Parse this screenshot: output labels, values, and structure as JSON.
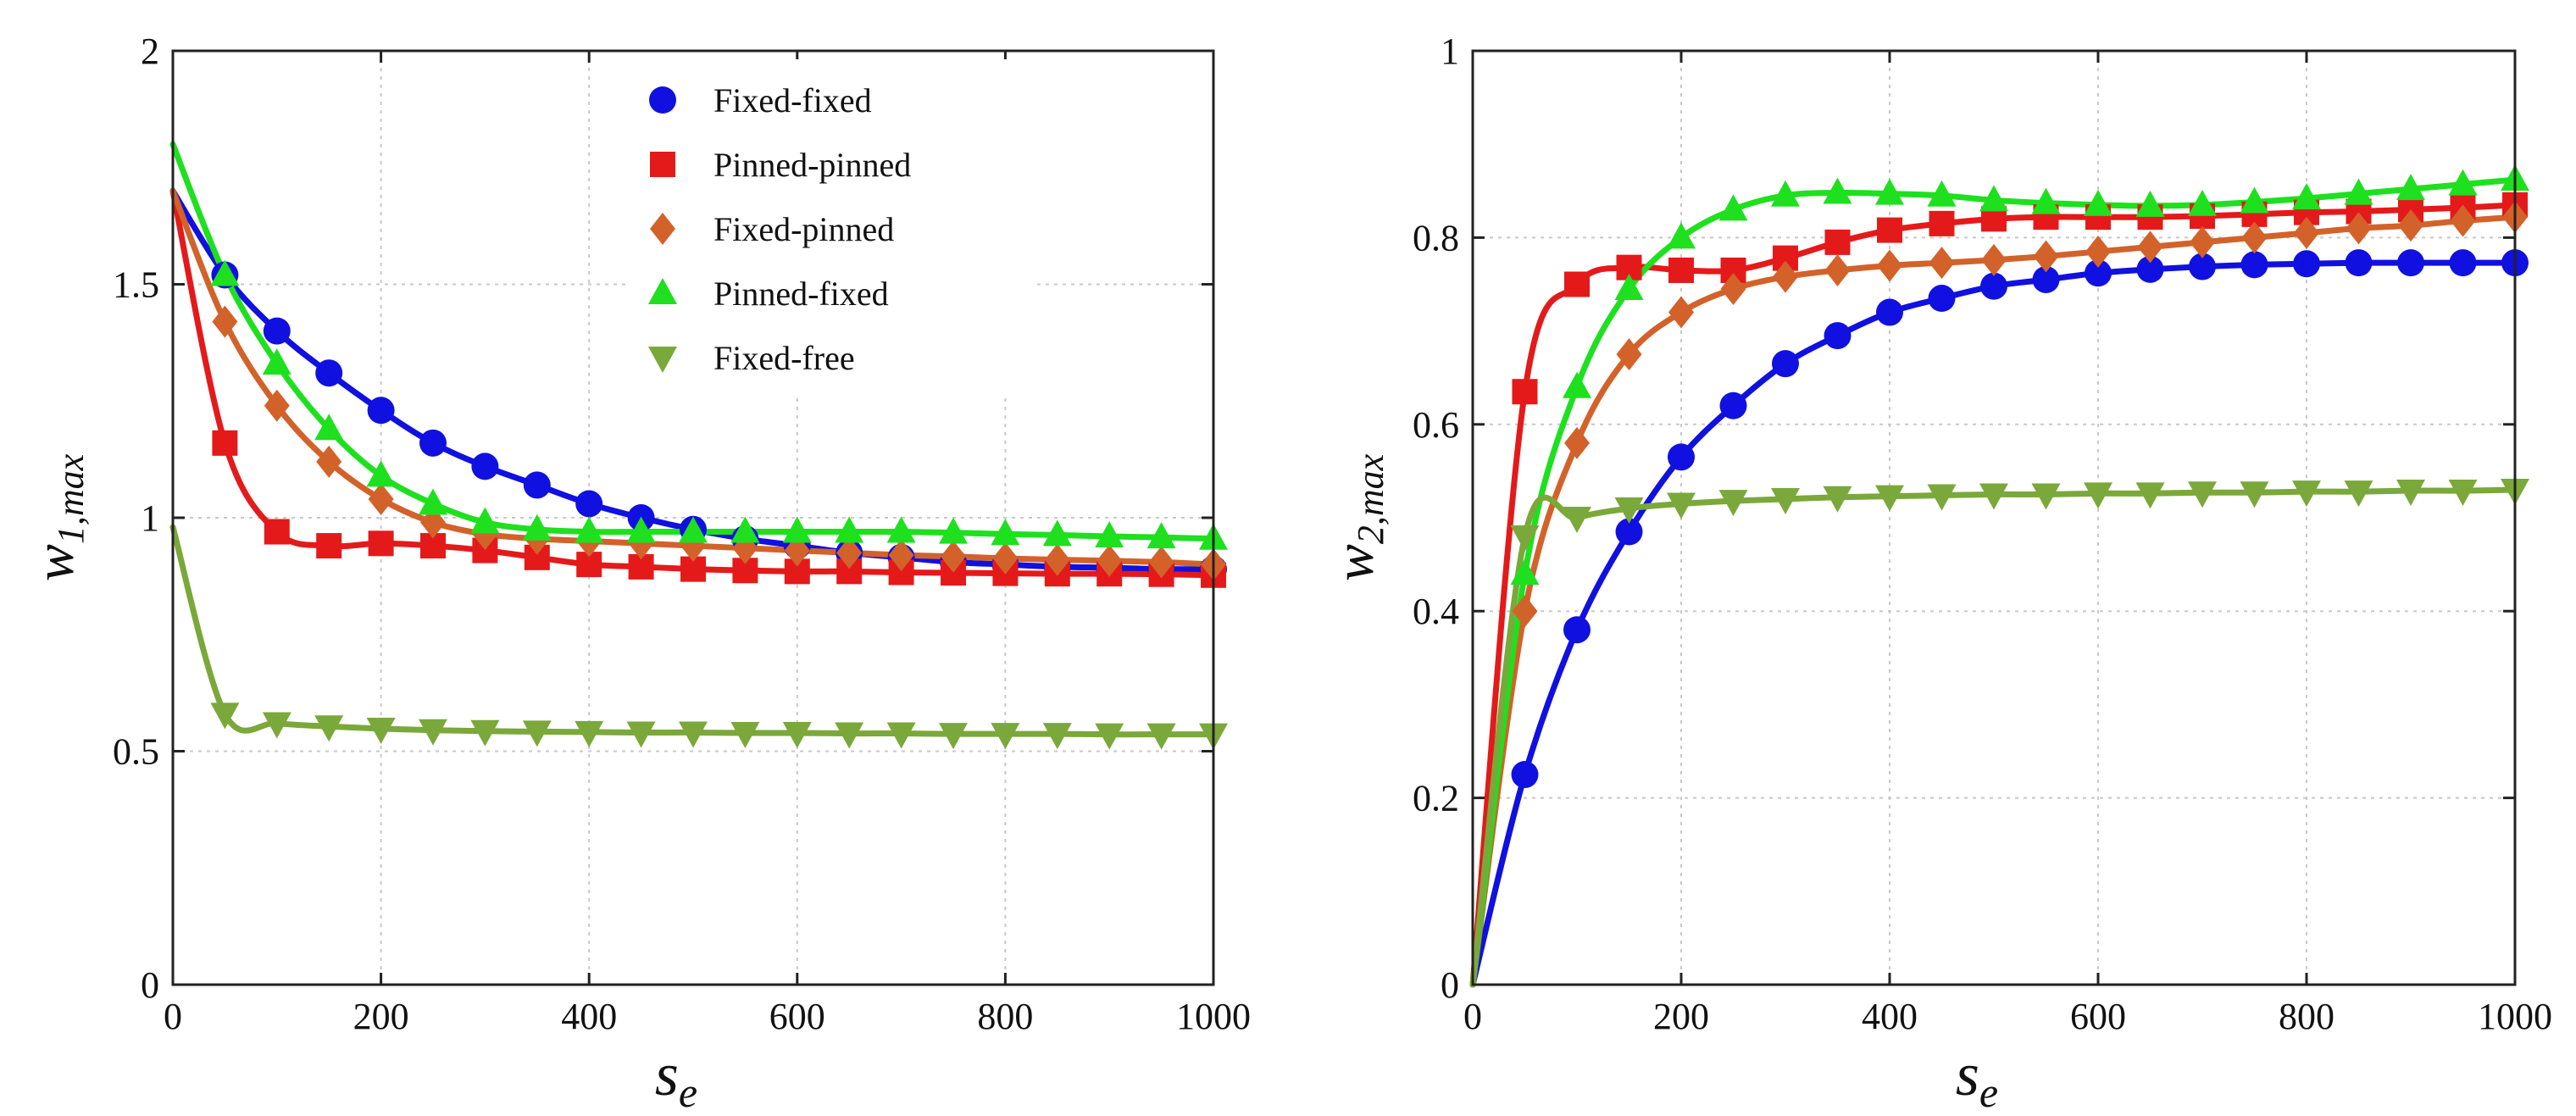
{
  "chart_data": [
    {
      "type": "line",
      "id": "left",
      "xlabel": "s",
      "xlabel_sub": "e",
      "ylabel": "w",
      "ylabel_sub": "1,max",
      "xlim": [
        0,
        1000
      ],
      "ylim": [
        0,
        2
      ],
      "xticks": [
        0,
        200,
        400,
        600,
        800,
        1000
      ],
      "yticks": [
        0,
        0.5,
        1,
        1.5,
        2
      ],
      "ytick_labels": [
        "0",
        "0.5",
        "1",
        "1.5",
        "2"
      ],
      "grid": true,
      "legend_position": "top-right",
      "x": [
        0,
        50,
        100,
        150,
        200,
        250,
        300,
        350,
        400,
        450,
        500,
        550,
        600,
        650,
        700,
        750,
        800,
        850,
        900,
        950,
        1000
      ],
      "series": [
        {
          "name": "Fixed-fixed",
          "marker": "circle",
          "color": "#1010e0",
          "values": [
            1.7,
            1.52,
            1.4,
            1.31,
            1.23,
            1.16,
            1.11,
            1.07,
            1.03,
            1.0,
            0.975,
            0.955,
            0.94,
            0.925,
            0.915,
            0.905,
            0.9,
            0.895,
            0.893,
            0.89,
            0.89
          ]
        },
        {
          "name": "Pinned-pinned",
          "marker": "square",
          "color": "#e41a1a",
          "values": [
            1.7,
            1.16,
            0.97,
            0.94,
            0.945,
            0.94,
            0.93,
            0.915,
            0.9,
            0.895,
            0.89,
            0.887,
            0.885,
            0.885,
            0.883,
            0.882,
            0.881,
            0.88,
            0.88,
            0.879,
            0.877
          ]
        },
        {
          "name": "Fixed-pinned",
          "marker": "diamond",
          "color": "#d2622a",
          "values": [
            1.7,
            1.42,
            1.24,
            1.12,
            1.04,
            0.99,
            0.965,
            0.955,
            0.95,
            0.945,
            0.94,
            0.935,
            0.93,
            0.925,
            0.92,
            0.917,
            0.913,
            0.91,
            0.908,
            0.905,
            0.9
          ]
        },
        {
          "name": "Pinned-fixed",
          "marker": "triangle-up",
          "color": "#1ee01e",
          "values": [
            1.8,
            1.52,
            1.33,
            1.19,
            1.09,
            1.03,
            0.99,
            0.975,
            0.97,
            0.97,
            0.97,
            0.97,
            0.97,
            0.97,
            0.97,
            0.968,
            0.965,
            0.963,
            0.96,
            0.958,
            0.955
          ]
        },
        {
          "name": "Fixed-free",
          "marker": "triangle-down",
          "color": "#7aa83a",
          "values": [
            0.98,
            0.58,
            0.56,
            0.553,
            0.548,
            0.545,
            0.543,
            0.542,
            0.541,
            0.54,
            0.54,
            0.539,
            0.539,
            0.538,
            0.538,
            0.537,
            0.537,
            0.537,
            0.536,
            0.536,
            0.536
          ]
        }
      ]
    },
    {
      "type": "line",
      "id": "right",
      "xlabel": "s",
      "xlabel_sub": "e",
      "ylabel": "w",
      "ylabel_sub": "2,max",
      "xlim": [
        0,
        1000
      ],
      "ylim": [
        0,
        1
      ],
      "xticks": [
        0,
        200,
        400,
        600,
        800,
        1000
      ],
      "yticks": [
        0,
        0.2,
        0.4,
        0.6,
        0.8,
        1
      ],
      "ytick_labels": [
        "0",
        "0.2",
        "0.4",
        "0.6",
        "0.8",
        "1"
      ],
      "grid": true,
      "x": [
        0,
        50,
        100,
        150,
        200,
        250,
        300,
        350,
        400,
        450,
        500,
        550,
        600,
        650,
        700,
        750,
        800,
        850,
        900,
        950,
        1000
      ],
      "series": [
        {
          "name": "Fixed-fixed",
          "marker": "circle",
          "color": "#1010e0",
          "values": [
            0,
            0.225,
            0.38,
            0.485,
            0.565,
            0.62,
            0.665,
            0.695,
            0.72,
            0.735,
            0.748,
            0.755,
            0.762,
            0.766,
            0.769,
            0.771,
            0.772,
            0.773,
            0.773,
            0.773,
            0.773
          ]
        },
        {
          "name": "Pinned-pinned",
          "marker": "square",
          "color": "#e41a1a",
          "values": [
            0,
            0.635,
            0.75,
            0.768,
            0.765,
            0.765,
            0.778,
            0.795,
            0.808,
            0.815,
            0.82,
            0.822,
            0.822,
            0.822,
            0.823,
            0.825,
            0.827,
            0.828,
            0.83,
            0.832,
            0.835
          ]
        },
        {
          "name": "Fixed-pinned",
          "marker": "diamond",
          "color": "#d2622a",
          "values": [
            0,
            0.4,
            0.58,
            0.675,
            0.72,
            0.745,
            0.758,
            0.765,
            0.77,
            0.773,
            0.776,
            0.78,
            0.785,
            0.79,
            0.795,
            0.8,
            0.805,
            0.81,
            0.813,
            0.818,
            0.822
          ]
        },
        {
          "name": "Pinned-fixed",
          "marker": "triangle-up",
          "color": "#1ee01e",
          "values": [
            0,
            0.44,
            0.64,
            0.745,
            0.8,
            0.83,
            0.845,
            0.848,
            0.847,
            0.845,
            0.84,
            0.837,
            0.835,
            0.834,
            0.835,
            0.838,
            0.842,
            0.847,
            0.852,
            0.857,
            0.862
          ]
        },
        {
          "name": "Fixed-free",
          "marker": "triangle-down",
          "color": "#7aa83a",
          "values": [
            0,
            0.48,
            0.5,
            0.51,
            0.515,
            0.518,
            0.52,
            0.522,
            0.523,
            0.524,
            0.525,
            0.525,
            0.526,
            0.526,
            0.527,
            0.527,
            0.528,
            0.528,
            0.529,
            0.529,
            0.53
          ]
        }
      ]
    }
  ]
}
